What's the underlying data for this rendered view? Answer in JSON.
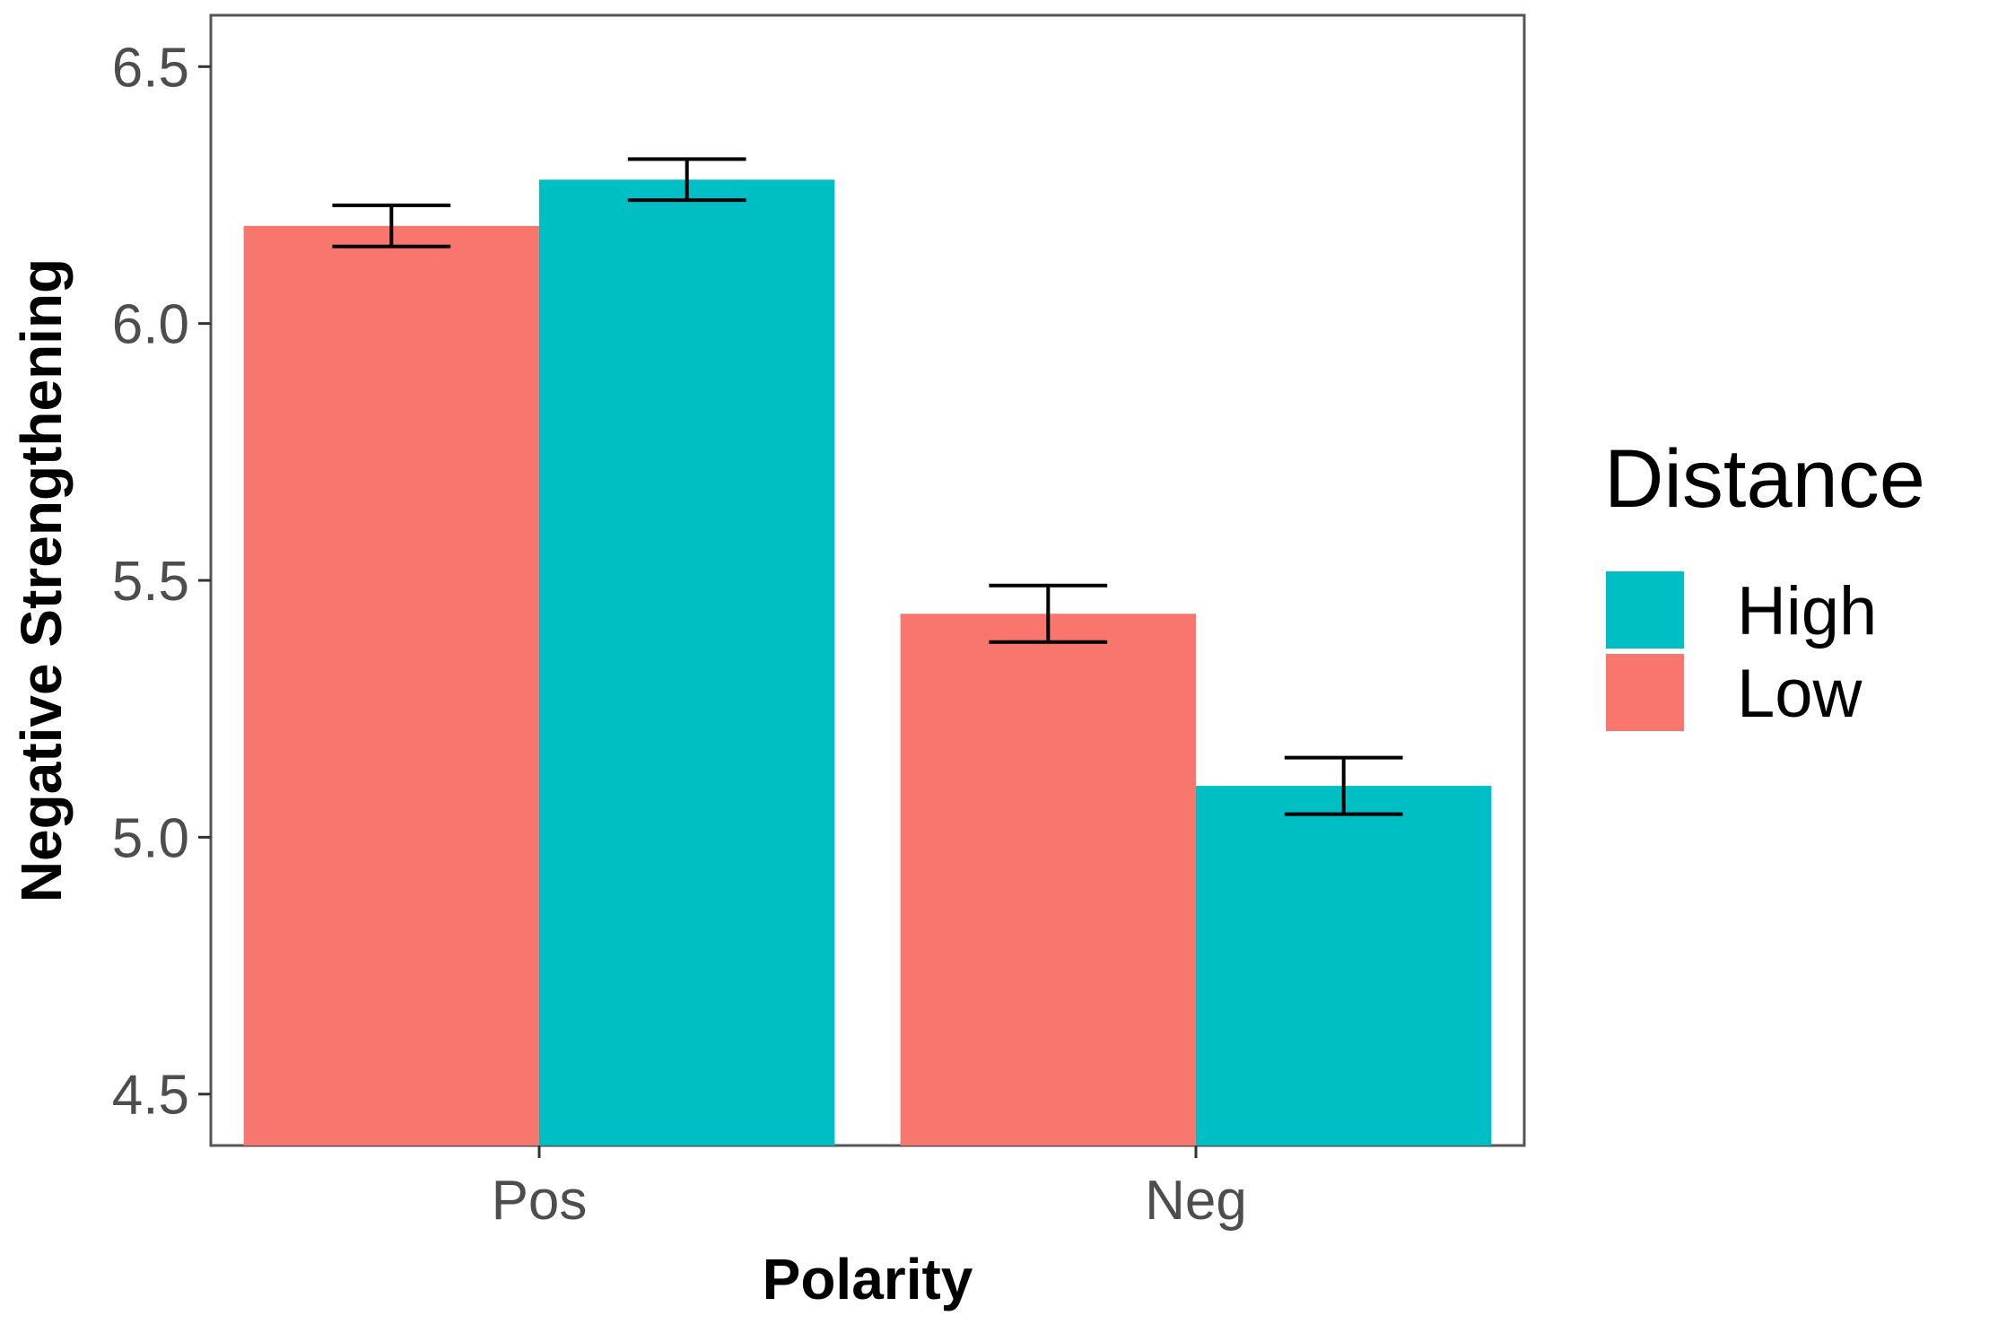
{
  "chart_data": {
    "type": "bar",
    "xlabel": "Polarity",
    "ylabel": "Negative Strengthening",
    "categories": [
      "Pos",
      "Neg"
    ],
    "ylim": [
      4.4,
      6.6
    ],
    "yticks": [
      4.5,
      5.0,
      5.5,
      6.0,
      6.5
    ],
    "ytick_labels": [
      "4.5",
      "5.0",
      "5.5",
      "6.0",
      "6.5"
    ],
    "grid": false,
    "legend": {
      "title": "Distance",
      "placement": "right",
      "entries": [
        {
          "name": "High",
          "color": "#00BFC4"
        },
        {
          "name": "Low",
          "color": "#F8766D"
        }
      ]
    },
    "series": [
      {
        "name": "Low",
        "color": "#F8766D",
        "values": [
          6.19,
          5.435
        ],
        "error": [
          [
            6.15,
            6.23
          ],
          [
            5.38,
            5.49
          ]
        ]
      },
      {
        "name": "High",
        "color": "#00BFC4",
        "values": [
          6.28,
          5.1
        ],
        "error": [
          [
            6.24,
            6.32
          ],
          [
            5.045,
            5.155
          ]
        ]
      }
    ]
  }
}
